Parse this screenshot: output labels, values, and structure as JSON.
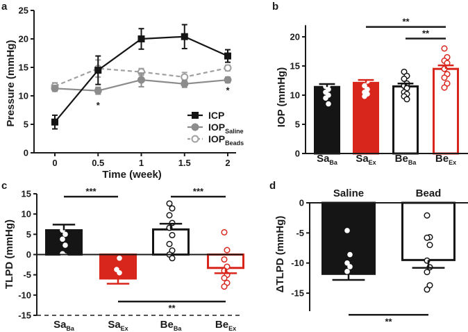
{
  "colors": {
    "black": "#151515",
    "red": "#d9261c",
    "gray": "#8c8c8c",
    "lightgray": "#a0a0a0"
  },
  "chart_data": [
    {
      "panel": "a",
      "type": "line",
      "xlabel": "Time (week)",
      "ylabel": "Pressure (mmHg)",
      "ylim": [
        0,
        25
      ],
      "yticks": [
        0,
        5,
        10,
        15,
        20,
        25
      ],
      "x": [
        0,
        0.5,
        1,
        1.5,
        2
      ],
      "xticks": [
        "0",
        "0.5",
        "1",
        "1.5",
        "2"
      ],
      "series": [
        {
          "name": "ICP",
          "sub": "",
          "values": [
            5.4,
            14.5,
            20.0,
            20.4,
            17.0
          ],
          "sem": [
            1.2,
            2.5,
            1.8,
            2.1,
            1.1
          ],
          "style": "solid-black-square"
        },
        {
          "name": "IOP",
          "sub": "Saline",
          "values": [
            11.3,
            10.9,
            12.8,
            12.1,
            12.8
          ],
          "sem": [
            0.5,
            0.6,
            1.2,
            0.6,
            0.5
          ],
          "style": "solid-gray-circle"
        },
        {
          "name": "IOP",
          "sub": "Beads",
          "values": [
            11.7,
            14.8,
            14.2,
            13.3,
            14.9
          ],
          "sem": [
            0.6,
            1.5,
            0.6,
            0.8,
            0.5
          ],
          "style": "dashed-gray-open-circle"
        }
      ],
      "annotations": [
        {
          "text": "*",
          "x": 0.5,
          "y": 8.3
        },
        {
          "text": "*",
          "x": 2,
          "y": 10.9
        }
      ]
    },
    {
      "panel": "b",
      "type": "bar",
      "ylabel": "IOP (mmHg)",
      "ylim": [
        0,
        22
      ],
      "yticks": [
        0,
        5,
        10,
        15,
        20
      ],
      "categories": [
        {
          "main": "Sa",
          "sub": "Ba"
        },
        {
          "main": "Sa",
          "sub": "Ex"
        },
        {
          "main": "Be",
          "sub": "Ba"
        },
        {
          "main": "Be",
          "sub": "Ex"
        }
      ],
      "values": [
        11.4,
        12.1,
        11.5,
        14.5
      ],
      "sem": [
        0.5,
        0.5,
        0.5,
        0.6
      ],
      "points": [
        [
          14.5,
          12.7,
          12.2,
          11.8,
          11.5,
          11,
          10.5,
          10,
          9.5,
          8.5
        ],
        [
          15.2,
          13.8,
          13.3,
          12.4,
          11.6,
          11,
          10.5,
          10.2,
          9.8
        ],
        [
          14,
          13.3,
          12.8,
          12,
          11.6,
          11.2,
          10.5,
          10.2,
          9.8,
          9.3
        ],
        [
          18,
          16.5,
          15.9,
          15.5,
          14.5,
          13.6,
          13,
          12,
          11.3
        ]
      ],
      "significance": [
        {
          "from": 1,
          "to": 3,
          "y": 21.7,
          "text": "**"
        },
        {
          "from": 2,
          "to": 3,
          "y": 19.7,
          "text": "**"
        }
      ]
    },
    {
      "panel": "c",
      "type": "bar",
      "ylabel": "TLPD (mmHg)",
      "ylim": [
        -15,
        15
      ],
      "yticks": [
        -15,
        -10,
        -5,
        0,
        5,
        10,
        15
      ],
      "categories": [
        {
          "main": "Sa",
          "sub": "Ba"
        },
        {
          "main": "Sa",
          "sub": "Ex"
        },
        {
          "main": "Be",
          "sub": "Ba"
        },
        {
          "main": "Be",
          "sub": "Ex"
        }
      ],
      "values": [
        6.0,
        -5.9,
        6.2,
        -3.3
      ],
      "sem": [
        1.4,
        1.3,
        1.4,
        1.3
      ],
      "points": [
        [
          13.1,
          10.8,
          9.3,
          8.5,
          6,
          5,
          3.8,
          2.3,
          0.2,
          -0.3
        ],
        [
          3.9,
          -0.9,
          -3.7,
          -4.5,
          -8.3,
          -8.7,
          -9,
          -9.2,
          -10.3
        ],
        [
          12.6,
          11.4,
          9.7,
          7.8,
          6.6,
          4.8,
          2.6,
          1,
          0,
          -0.9
        ],
        [
          5.5,
          1.1,
          -1.2,
          -3,
          -4,
          -5,
          -5.8,
          -7,
          -7.9
        ]
      ],
      "significance": [
        {
          "from": 0,
          "to": 1,
          "y": 14.3,
          "text": "***"
        },
        {
          "from": 2,
          "to": 3,
          "y": 14.3,
          "text": "***"
        },
        {
          "from": 1,
          "to": 3,
          "y": -11.6,
          "text": "**",
          "below": true
        }
      ]
    },
    {
      "panel": "d",
      "type": "bar",
      "ylabel": "ΔTLPD (mmHg)",
      "ylim": [
        -18,
        0
      ],
      "yticks": [
        -15,
        -10,
        -5,
        0
      ],
      "categories": [
        {
          "main": "Saline",
          "sub": ""
        },
        {
          "main": "Bead",
          "sub": ""
        }
      ],
      "values": [
        -11.8,
        -9.5
      ],
      "sem": [
        1.0,
        1.3
      ],
      "points": [
        [
          -4.6,
          -8.6,
          -10,
          -10.6,
          -11.4,
          -12.4,
          -12.8,
          -14,
          -14.6,
          -17.8
        ],
        [
          -2.1,
          -5.7,
          -5.8,
          -7,
          -9.6,
          -10.7,
          -11.5,
          -13.7,
          -14.4
        ]
      ],
      "significance": [
        {
          "from": 0,
          "to": 1,
          "y": -18.6,
          "text": "**",
          "below": true
        }
      ]
    }
  ]
}
